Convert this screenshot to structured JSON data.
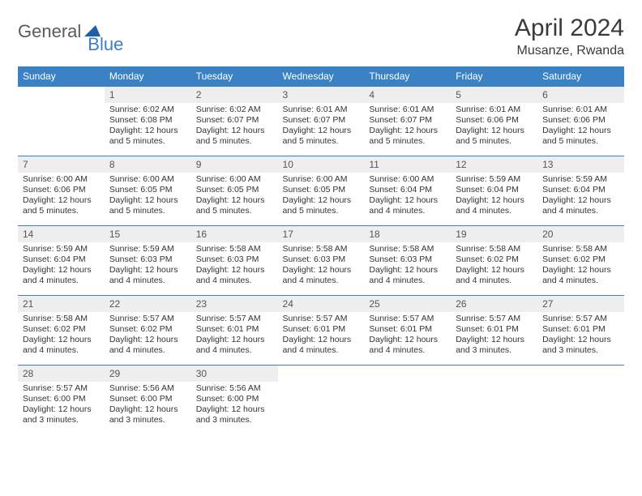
{
  "brand": {
    "part1": "General",
    "part2": "Blue"
  },
  "title": "April 2024",
  "location": "Musanze, Rwanda",
  "colors": {
    "header_bg": "#3b82c4",
    "header_text": "#ffffff",
    "daynum_bg": "#eeeeee",
    "rule": "#3b7fc4",
    "brand_gray": "#5a5a5a",
    "brand_blue": "#3b7fc4"
  },
  "typography": {
    "title_fontsize": 30,
    "location_fontsize": 16,
    "dayheader_fontsize": 12,
    "body_fontsize": 10.5
  },
  "day_headers": [
    "Sunday",
    "Monday",
    "Tuesday",
    "Wednesday",
    "Thursday",
    "Friday",
    "Saturday"
  ],
  "weeks": [
    [
      {
        "n": "",
        "sr": "",
        "ss": "",
        "dl": "",
        "empty": true
      },
      {
        "n": "1",
        "sr": "Sunrise: 6:02 AM",
        "ss": "Sunset: 6:08 PM",
        "dl": "Daylight: 12 hours and 5 minutes."
      },
      {
        "n": "2",
        "sr": "Sunrise: 6:02 AM",
        "ss": "Sunset: 6:07 PM",
        "dl": "Daylight: 12 hours and 5 minutes."
      },
      {
        "n": "3",
        "sr": "Sunrise: 6:01 AM",
        "ss": "Sunset: 6:07 PM",
        "dl": "Daylight: 12 hours and 5 minutes."
      },
      {
        "n": "4",
        "sr": "Sunrise: 6:01 AM",
        "ss": "Sunset: 6:07 PM",
        "dl": "Daylight: 12 hours and 5 minutes."
      },
      {
        "n": "5",
        "sr": "Sunrise: 6:01 AM",
        "ss": "Sunset: 6:06 PM",
        "dl": "Daylight: 12 hours and 5 minutes."
      },
      {
        "n": "6",
        "sr": "Sunrise: 6:01 AM",
        "ss": "Sunset: 6:06 PM",
        "dl": "Daylight: 12 hours and 5 minutes."
      }
    ],
    [
      {
        "n": "7",
        "sr": "Sunrise: 6:00 AM",
        "ss": "Sunset: 6:06 PM",
        "dl": "Daylight: 12 hours and 5 minutes."
      },
      {
        "n": "8",
        "sr": "Sunrise: 6:00 AM",
        "ss": "Sunset: 6:05 PM",
        "dl": "Daylight: 12 hours and 5 minutes."
      },
      {
        "n": "9",
        "sr": "Sunrise: 6:00 AM",
        "ss": "Sunset: 6:05 PM",
        "dl": "Daylight: 12 hours and 5 minutes."
      },
      {
        "n": "10",
        "sr": "Sunrise: 6:00 AM",
        "ss": "Sunset: 6:05 PM",
        "dl": "Daylight: 12 hours and 5 minutes."
      },
      {
        "n": "11",
        "sr": "Sunrise: 6:00 AM",
        "ss": "Sunset: 6:04 PM",
        "dl": "Daylight: 12 hours and 4 minutes."
      },
      {
        "n": "12",
        "sr": "Sunrise: 5:59 AM",
        "ss": "Sunset: 6:04 PM",
        "dl": "Daylight: 12 hours and 4 minutes."
      },
      {
        "n": "13",
        "sr": "Sunrise: 5:59 AM",
        "ss": "Sunset: 6:04 PM",
        "dl": "Daylight: 12 hours and 4 minutes."
      }
    ],
    [
      {
        "n": "14",
        "sr": "Sunrise: 5:59 AM",
        "ss": "Sunset: 6:04 PM",
        "dl": "Daylight: 12 hours and 4 minutes."
      },
      {
        "n": "15",
        "sr": "Sunrise: 5:59 AM",
        "ss": "Sunset: 6:03 PM",
        "dl": "Daylight: 12 hours and 4 minutes."
      },
      {
        "n": "16",
        "sr": "Sunrise: 5:58 AM",
        "ss": "Sunset: 6:03 PM",
        "dl": "Daylight: 12 hours and 4 minutes."
      },
      {
        "n": "17",
        "sr": "Sunrise: 5:58 AM",
        "ss": "Sunset: 6:03 PM",
        "dl": "Daylight: 12 hours and 4 minutes."
      },
      {
        "n": "18",
        "sr": "Sunrise: 5:58 AM",
        "ss": "Sunset: 6:03 PM",
        "dl": "Daylight: 12 hours and 4 minutes."
      },
      {
        "n": "19",
        "sr": "Sunrise: 5:58 AM",
        "ss": "Sunset: 6:02 PM",
        "dl": "Daylight: 12 hours and 4 minutes."
      },
      {
        "n": "20",
        "sr": "Sunrise: 5:58 AM",
        "ss": "Sunset: 6:02 PM",
        "dl": "Daylight: 12 hours and 4 minutes."
      }
    ],
    [
      {
        "n": "21",
        "sr": "Sunrise: 5:58 AM",
        "ss": "Sunset: 6:02 PM",
        "dl": "Daylight: 12 hours and 4 minutes."
      },
      {
        "n": "22",
        "sr": "Sunrise: 5:57 AM",
        "ss": "Sunset: 6:02 PM",
        "dl": "Daylight: 12 hours and 4 minutes."
      },
      {
        "n": "23",
        "sr": "Sunrise: 5:57 AM",
        "ss": "Sunset: 6:01 PM",
        "dl": "Daylight: 12 hours and 4 minutes."
      },
      {
        "n": "24",
        "sr": "Sunrise: 5:57 AM",
        "ss": "Sunset: 6:01 PM",
        "dl": "Daylight: 12 hours and 4 minutes."
      },
      {
        "n": "25",
        "sr": "Sunrise: 5:57 AM",
        "ss": "Sunset: 6:01 PM",
        "dl": "Daylight: 12 hours and 4 minutes."
      },
      {
        "n": "26",
        "sr": "Sunrise: 5:57 AM",
        "ss": "Sunset: 6:01 PM",
        "dl": "Daylight: 12 hours and 3 minutes."
      },
      {
        "n": "27",
        "sr": "Sunrise: 5:57 AM",
        "ss": "Sunset: 6:01 PM",
        "dl": "Daylight: 12 hours and 3 minutes."
      }
    ],
    [
      {
        "n": "28",
        "sr": "Sunrise: 5:57 AM",
        "ss": "Sunset: 6:00 PM",
        "dl": "Daylight: 12 hours and 3 minutes."
      },
      {
        "n": "29",
        "sr": "Sunrise: 5:56 AM",
        "ss": "Sunset: 6:00 PM",
        "dl": "Daylight: 12 hours and 3 minutes."
      },
      {
        "n": "30",
        "sr": "Sunrise: 5:56 AM",
        "ss": "Sunset: 6:00 PM",
        "dl": "Daylight: 12 hours and 3 minutes."
      },
      {
        "n": "",
        "sr": "",
        "ss": "",
        "dl": "",
        "empty": true
      },
      {
        "n": "",
        "sr": "",
        "ss": "",
        "dl": "",
        "empty": true
      },
      {
        "n": "",
        "sr": "",
        "ss": "",
        "dl": "",
        "empty": true
      },
      {
        "n": "",
        "sr": "",
        "ss": "",
        "dl": "",
        "empty": true
      }
    ]
  ]
}
